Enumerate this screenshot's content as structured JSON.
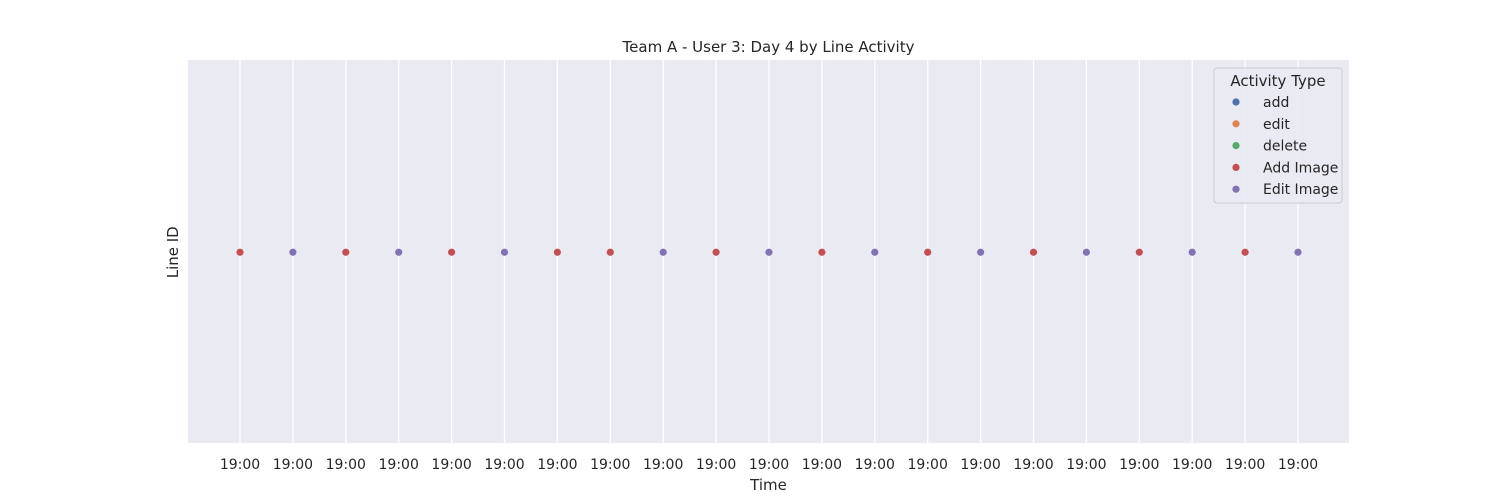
{
  "chart_data": {
    "type": "scatter",
    "title": "Team A - User 3: Day 4 by Line Activity",
    "xlabel": "Time",
    "ylabel": "Line ID",
    "x": [
      "19:00",
      "19:00",
      "19:00",
      "19:00",
      "19:00",
      "19:00",
      "19:00",
      "19:00",
      "19:00",
      "19:00",
      "19:00",
      "19:00",
      "19:00",
      "19:00",
      "19:00",
      "19:00",
      "19:00",
      "19:00",
      "19:00",
      "19:00",
      "19:00"
    ],
    "activities": [
      "Add Image",
      "Edit Image",
      "Add Image",
      "Edit Image",
      "Add Image",
      "Edit Image",
      "Add Image",
      "Add Image",
      "Edit Image",
      "Add Image",
      "Edit Image",
      "Add Image",
      "Edit Image",
      "Add Image",
      "Edit Image",
      "Add Image",
      "Edit Image",
      "Add Image",
      "Edit Image",
      "Add Image",
      "Edit Image"
    ],
    "grid": true,
    "legend": {
      "title": "Activity Type",
      "placement": "upper right",
      "entries": [
        {
          "name": "add",
          "color": "#4c72b0"
        },
        {
          "name": "edit",
          "color": "#dd8452"
        },
        {
          "name": "delete",
          "color": "#55a868"
        },
        {
          "name": "Add Image",
          "color": "#c44e52"
        },
        {
          "name": "Edit Image",
          "color": "#8172b3"
        }
      ]
    },
    "colors": {
      "background": "#eaeaf2",
      "grid": "#ffffff"
    }
  }
}
